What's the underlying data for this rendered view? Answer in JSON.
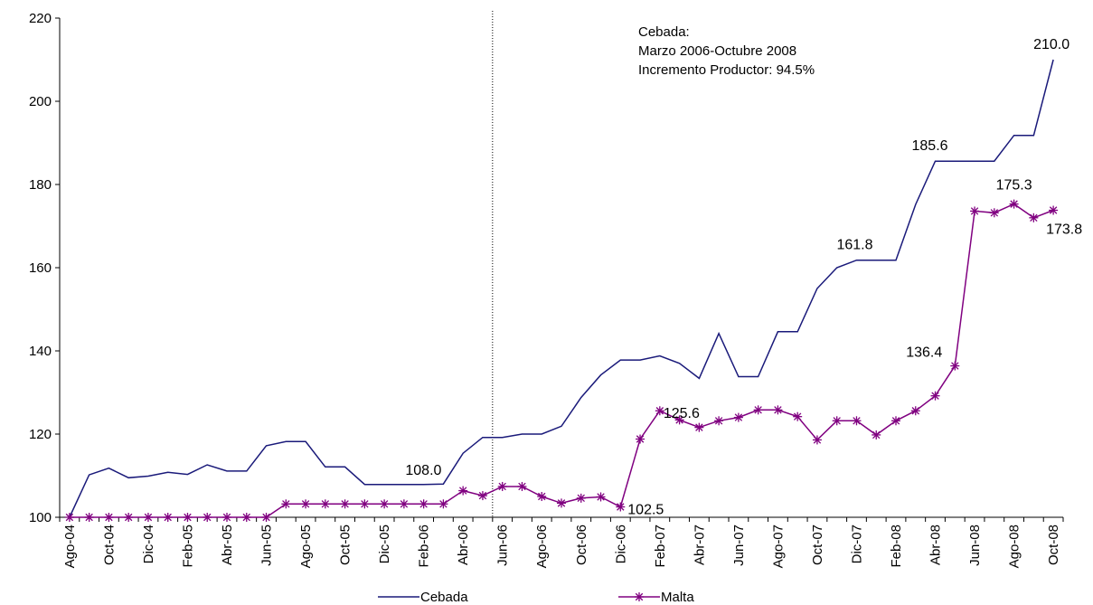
{
  "chart_data": {
    "type": "line",
    "title": "",
    "xlabel": "",
    "ylabel": "",
    "ylim": [
      100,
      220
    ],
    "yticks": [
      100,
      120,
      140,
      160,
      180,
      200,
      220
    ],
    "grid": false,
    "legend_position": "bottom",
    "categories": [
      "Ago-04",
      "Sep-04",
      "Oct-04",
      "Nov-04",
      "Dic-04",
      "Ene-05",
      "Feb-05",
      "Mar-05",
      "Abr-05",
      "May-05",
      "Jun-05",
      "Jul-05",
      "Ago-05",
      "Sep-05",
      "Oct-05",
      "Nov-05",
      "Dic-05",
      "Ene-06",
      "Feb-06",
      "Mar-06",
      "Abr-06",
      "May-06",
      "Jun-06",
      "Jul-06",
      "Ago-06",
      "Sep-06",
      "Oct-06",
      "Nov-06",
      "Dic-06",
      "Ene-07",
      "Feb-07",
      "Mar-07",
      "Abr-07",
      "May-07",
      "Jun-07",
      "Jul-07",
      "Ago-07",
      "Sep-07",
      "Oct-07",
      "Nov-07",
      "Dic-07",
      "Ene-08",
      "Feb-08",
      "Mar-08",
      "Abr-08",
      "May-08",
      "Jun-08",
      "Jul-08",
      "Ago-08",
      "Sep-08",
      "Oct-08"
    ],
    "visible_tick_labels": [
      "Ago-04",
      "Oct-04",
      "Dic-04",
      "Feb-05",
      "Abr-05",
      "Jun-05",
      "Ago-05",
      "Oct-05",
      "Dic-05",
      "Feb-06",
      "Abr-06",
      "Jun-06",
      "Ago-06",
      "Oct-06",
      "Dic-06",
      "Feb-07",
      "Abr-07",
      "Jun-07",
      "Ago-07",
      "Oct-07",
      "Dic-07",
      "Feb-08",
      "Abr-08",
      "Jun-08",
      "Ago-08",
      "Oct-08"
    ],
    "series": [
      {
        "name": "Cebada",
        "color": "#1a1a7a",
        "marker": "none",
        "values": [
          100,
          110.2,
          111.8,
          109.5,
          109.9,
          110.8,
          110.3,
          112.6,
          111.1,
          111.1,
          117.2,
          118.2,
          118.2,
          112.1,
          112.1,
          107.9,
          107.9,
          107.9,
          107.9,
          108.0,
          115.4,
          119.2,
          119.2,
          120.0,
          120.0,
          121.9,
          128.8,
          134.2,
          137.8,
          137.8,
          138.8,
          137.0,
          133.4,
          144.2,
          133.8,
          133.8,
          144.6,
          144.6,
          155.0,
          160.0,
          161.8,
          161.8,
          161.8,
          175.2,
          185.6,
          185.6,
          185.6,
          185.6,
          191.8,
          191.8,
          210.0
        ]
      },
      {
        "name": "Malta",
        "color": "#800080",
        "marker": "asterisk",
        "values": [
          100,
          100,
          100,
          100,
          100,
          100,
          100,
          100,
          100,
          100,
          100,
          103.2,
          103.2,
          103.2,
          103.2,
          103.2,
          103.2,
          103.2,
          103.2,
          103.2,
          106.4,
          105.2,
          107.4,
          107.4,
          105.0,
          103.4,
          104.6,
          104.9,
          102.5,
          118.8,
          125.6,
          123.4,
          121.6,
          123.2,
          124.0,
          125.8,
          125.8,
          124.2,
          118.6,
          123.2,
          123.2,
          119.8,
          123.2,
          125.6,
          129.2,
          136.4,
          173.6,
          173.2,
          175.3,
          172.0,
          173.8
        ]
      }
    ],
    "data_labels": [
      {
        "series": "Cebada",
        "category": "Mar-06",
        "text": "108.0"
      },
      {
        "series": "Cebada",
        "category": "Dic-07",
        "text": "161.8"
      },
      {
        "series": "Cebada",
        "category": "Abr-08",
        "text": "185.6"
      },
      {
        "series": "Cebada",
        "category": "Oct-08",
        "text": "210.0"
      },
      {
        "series": "Malta",
        "category": "Dic-06",
        "text": "102.5"
      },
      {
        "series": "Malta",
        "category": "Feb-07",
        "text": "125.6"
      },
      {
        "series": "Malta",
        "category": "May-08",
        "text": "136.4"
      },
      {
        "series": "Malta",
        "category": "Ago-08",
        "text": "175.3"
      },
      {
        "series": "Malta",
        "category": "Oct-08",
        "text": "173.8"
      }
    ],
    "reference_line": {
      "between": [
        "May-06",
        "Jun-06"
      ],
      "style": "dotted"
    },
    "annotation": [
      "Cebada:",
      "Marzo 2006-Octubre 2008",
      "Incremento Productor: 94.5%"
    ]
  }
}
